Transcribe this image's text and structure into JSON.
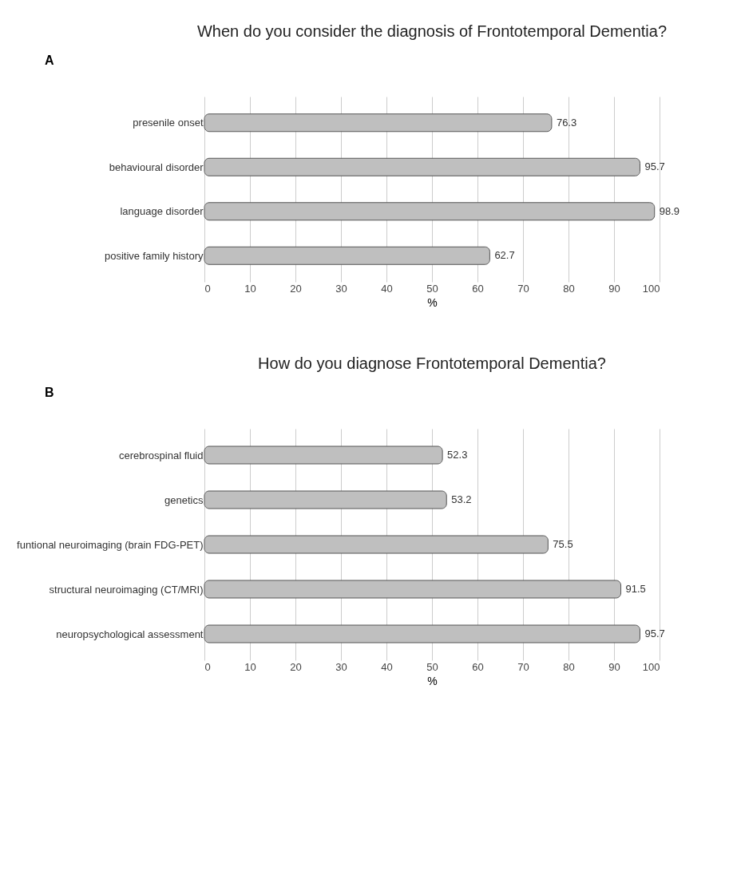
{
  "chart_data": [
    {
      "type": "bar",
      "orientation": "horizontal",
      "title": "When do you consider the diagnosis of Frontotemporal Dementia?",
      "xlabel": "%",
      "annotations": [
        "A"
      ],
      "categories": [
        "presenile onset",
        "behavioural disorder",
        "language disorder",
        "positive family history"
      ],
      "series": [
        {
          "color": "#bfbfbf",
          "values": [
            76.3,
            95.7,
            98.9,
            62.7
          ]
        }
      ],
      "xlim": [
        0,
        100
      ],
      "xticks": [
        0,
        10,
        20,
        30,
        40,
        50,
        60,
        70,
        80,
        90,
        100
      ],
      "grid": "x",
      "data_labels": true
    },
    {
      "type": "bar",
      "orientation": "horizontal",
      "title": "How do you diagnose Frontotemporal Dementia?",
      "xlabel": "%",
      "annotations": [
        "B"
      ],
      "categories": [
        "cerebrospinal fluid",
        "genetics",
        "funtional neuroimaging (brain FDG-PET)",
        "structural neuroimaging (CT/MRI)",
        "neuropsychological assessment"
      ],
      "series": [
        {
          "color": "#bfbfbf",
          "values": [
            52.3,
            53.2,
            75.5,
            91.5,
            95.7
          ]
        }
      ],
      "xlim": [
        0,
        100
      ],
      "xticks": [
        0,
        10,
        20,
        30,
        40,
        50,
        60,
        70,
        80,
        90,
        100
      ],
      "grid": "x",
      "data_labels": true
    }
  ]
}
